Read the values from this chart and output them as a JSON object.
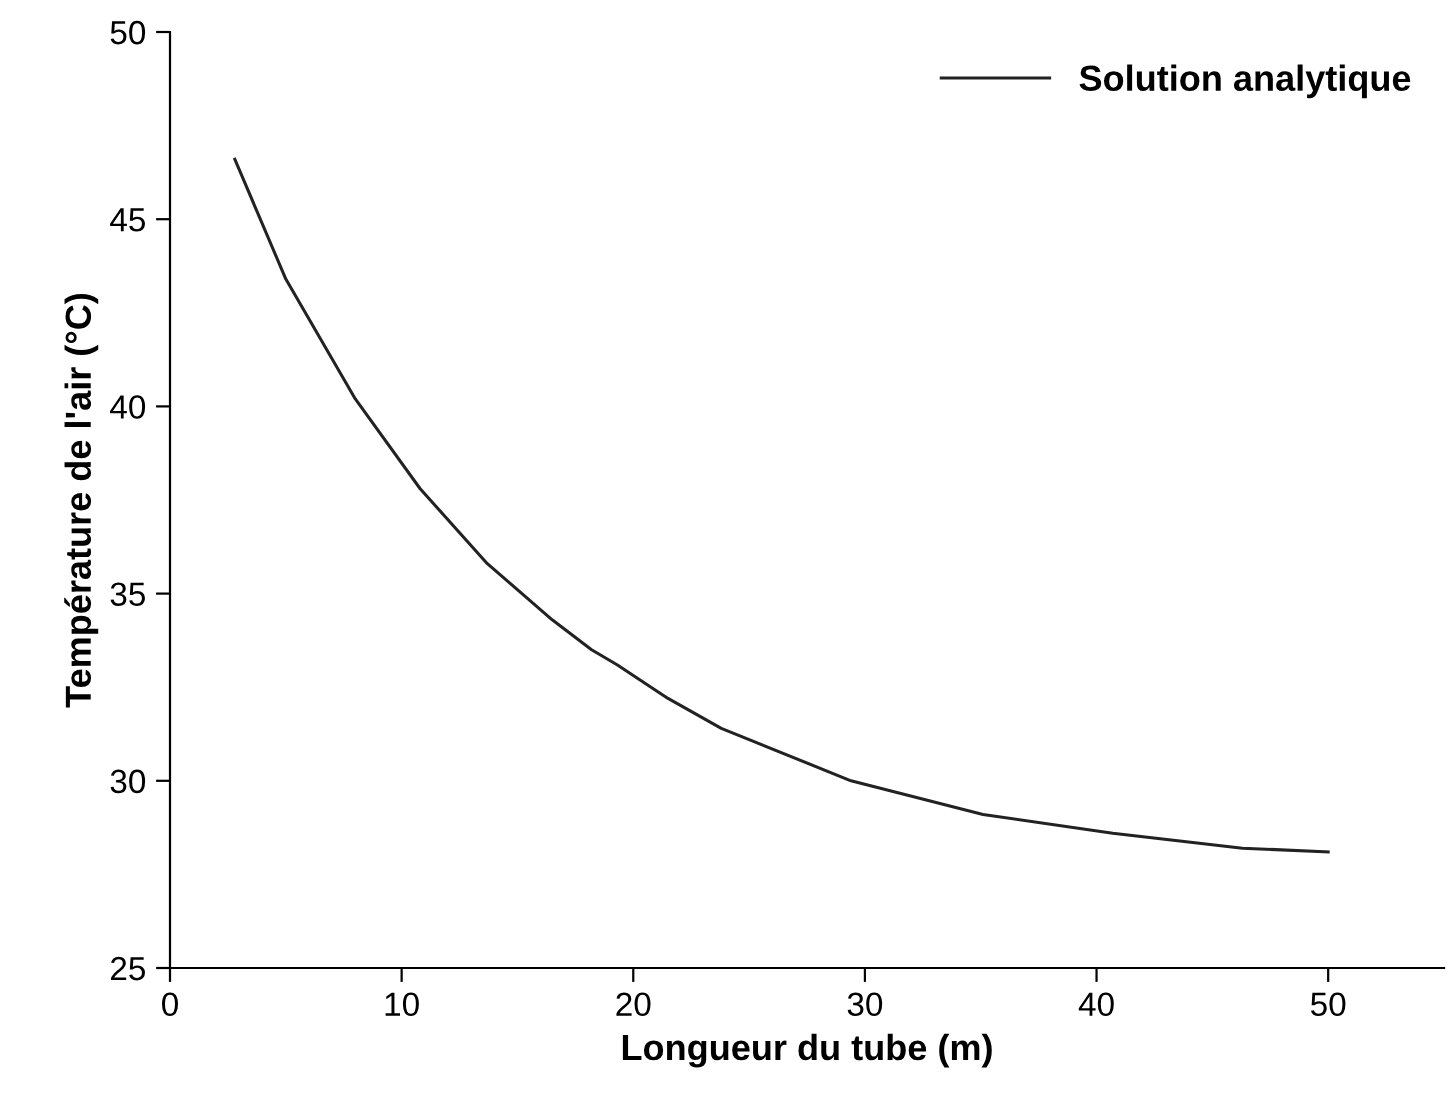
{
  "chart_data": {
    "type": "line",
    "xlabel": "Longueur du tube (m)",
    "ylabel": "Température de l'air (°C)",
    "xlim": [
      0,
      55
    ],
    "xticks": [
      0,
      10,
      20,
      30,
      40,
      50
    ],
    "ylim": [
      25,
      50
    ],
    "yticks": [
      25,
      30,
      35,
      40,
      45,
      50
    ],
    "grid": false,
    "legend": "top right",
    "marker": "none",
    "line_style": "solid",
    "series": [
      {
        "name": "Solution analytique",
        "color": "#222222",
        "x": [
          2.8,
          5.0,
          8.0,
          10.8,
          13.7,
          16.5,
          18.2,
          19.3,
          21.5,
          23.8,
          29.4,
          35.1,
          40.7,
          46.3,
          50.0
        ],
        "values": [
          46.6,
          43.4,
          40.2,
          37.8,
          35.8,
          34.3,
          33.5,
          33.1,
          32.2,
          31.4,
          30.0,
          29.1,
          28.6,
          28.2,
          28.1
        ]
      }
    ]
  }
}
